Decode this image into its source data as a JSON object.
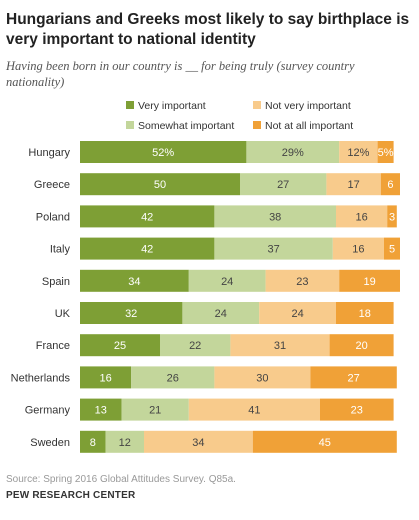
{
  "title": "Hungarians and Greeks most likely to say birthplace is very important to national identity",
  "subtitle": "Having been born in our country is __ for being truly (survey country nationality)",
  "source": "Source: Spring 2016 Global Attitudes Survey. Q85a.",
  "org": "PEW RESEARCH CENTER",
  "chart_data": {
    "type": "bar",
    "orientation": "horizontal",
    "stacked": true,
    "categories": [
      "Hungary",
      "Greece",
      "Poland",
      "Italy",
      "Spain",
      "UK",
      "France",
      "Netherlands",
      "Germany",
      "Sweden"
    ],
    "series": [
      {
        "name": "Very important",
        "color": "#7e9f35",
        "values": [
          52,
          50,
          42,
          42,
          34,
          32,
          25,
          16,
          13,
          8
        ]
      },
      {
        "name": "Somewhat important",
        "color": "#c3d69b",
        "values": [
          29,
          27,
          38,
          37,
          24,
          24,
          22,
          26,
          21,
          12
        ]
      },
      {
        "name": "Not very important",
        "color": "#f8cb8c",
        "values": [
          12,
          17,
          16,
          16,
          23,
          24,
          31,
          30,
          41,
          34
        ]
      },
      {
        "name": "Not at all important",
        "color": "#f0a137",
        "values": [
          5,
          6,
          3,
          5,
          19,
          18,
          20,
          27,
          23,
          45
        ]
      }
    ],
    "value_labels": [
      [
        "52%",
        "29%",
        "12%",
        "5%"
      ],
      [
        "50",
        "27",
        "17",
        "6"
      ],
      [
        "42",
        "38",
        "16",
        "3"
      ],
      [
        "42",
        "37",
        "16",
        "5"
      ],
      [
        "34",
        "24",
        "23",
        "19"
      ],
      [
        "32",
        "24",
        "24",
        "18"
      ],
      [
        "25",
        "22",
        "31",
        "20"
      ],
      [
        "16",
        "26",
        "30",
        "27"
      ],
      [
        "13",
        "21",
        "41",
        "23"
      ],
      [
        "8",
        "12",
        "34",
        "45"
      ]
    ],
    "xlim": [
      0,
      100
    ],
    "legend_position": "top"
  }
}
